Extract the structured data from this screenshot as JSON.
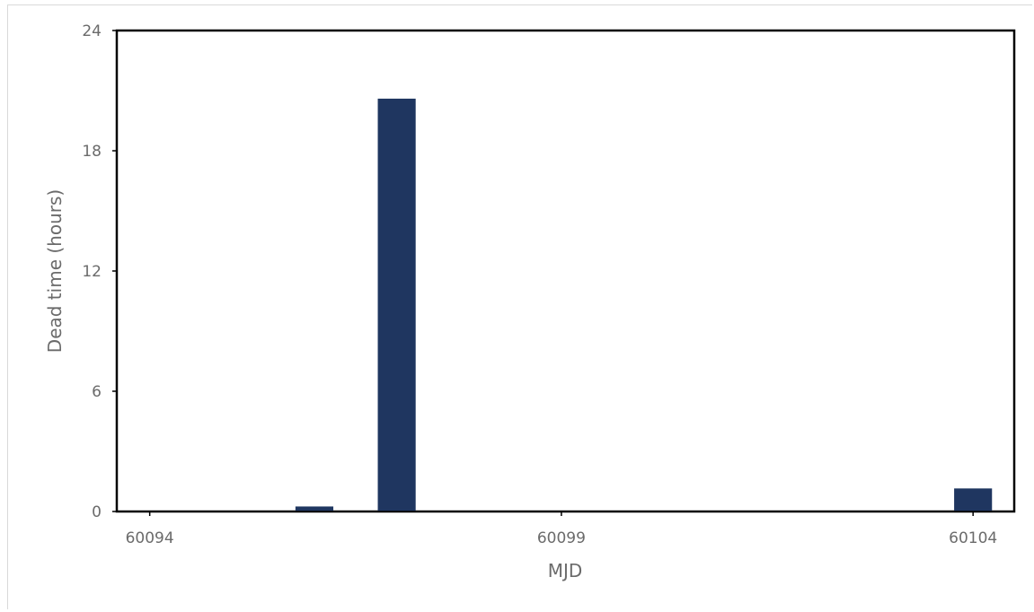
{
  "chart_data": {
    "type": "bar",
    "title": "",
    "xlabel": "MJD",
    "ylabel": "Dead time (hours)",
    "xlim": [
      60093.6,
      60104.5
    ],
    "ylim": [
      0,
      24
    ],
    "x_ticks": [
      "60094",
      "60099",
      "60104"
    ],
    "y_ticks": [
      "0",
      "6",
      "12",
      "18",
      "24"
    ],
    "grid": false,
    "bar_color": "#1f3660",
    "x": [
      60094,
      60095,
      60096,
      60097,
      60098,
      60099,
      60100,
      60101,
      60102,
      60103,
      60104
    ],
    "values": [
      0,
      0,
      0.25,
      20.6,
      0,
      0,
      0,
      0,
      0,
      0,
      1.15
    ]
  }
}
